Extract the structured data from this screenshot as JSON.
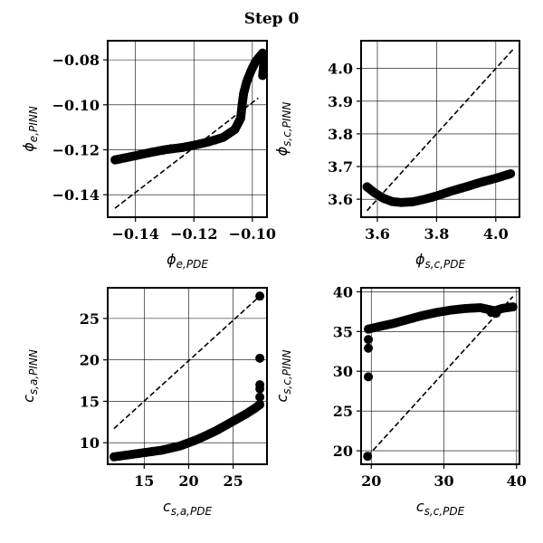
{
  "title": "Step 0",
  "chart_data": [
    {
      "type": "scatter",
      "xlabel": {
        "base": "ϕ",
        "sub": "e,PDE"
      },
      "ylabel": {
        "base": "ϕ",
        "sub": "e,PINN"
      },
      "xlim": [
        -0.1495,
        -0.095
      ],
      "ylim": [
        -0.15,
        -0.0715
      ],
      "xticks": [
        -0.14,
        -0.12,
        -0.1
      ],
      "yticks": [
        -0.14,
        -0.12,
        -0.1,
        -0.08
      ],
      "xtick_labels": [
        "−0.14",
        "−0.12",
        "−0.10"
      ],
      "ytick_labels": [
        "−0.14",
        "−0.12",
        "−0.10",
        "−0.08"
      ],
      "grid": true,
      "reference_line": [
        [
          -0.147,
          -0.146
        ],
        [
          -0.098,
          -0.097
        ]
      ],
      "curve": [
        [
          -0.147,
          -0.1245
        ],
        [
          -0.142,
          -0.1232
        ],
        [
          -0.136,
          -0.1215
        ],
        [
          -0.13,
          -0.12
        ],
        [
          -0.124,
          -0.119
        ],
        [
          -0.12,
          -0.118
        ],
        [
          -0.115,
          -0.1165
        ],
        [
          -0.11,
          -0.1145
        ],
        [
          -0.106,
          -0.111
        ],
        [
          -0.104,
          -0.106
        ],
        [
          -0.1035,
          -0.1
        ],
        [
          -0.103,
          -0.095
        ],
        [
          -0.102,
          -0.09
        ],
        [
          -0.1005,
          -0.085
        ],
        [
          -0.099,
          -0.081
        ],
        [
          -0.0975,
          -0.0785
        ],
        [
          -0.0965,
          -0.077
        ],
        [
          -0.096,
          -0.079
        ],
        [
          -0.0962,
          -0.083
        ],
        [
          -0.0965,
          -0.087
        ]
      ],
      "outliers": [
        [
          -0.1305,
          -0.1202
        ],
        [
          -0.1278,
          -0.1195
        ],
        [
          -0.124,
          -0.119
        ]
      ]
    },
    {
      "type": "scatter",
      "xlabel": {
        "base": "ϕ",
        "sub": "s,c,PDE"
      },
      "ylabel": {
        "base": "ϕ",
        "sub": "s,c,PINN"
      },
      "xlim": [
        3.545,
        4.08
      ],
      "ylim": [
        3.545,
        4.085
      ],
      "xticks": [
        3.6,
        3.8,
        4.0
      ],
      "yticks": [
        3.6,
        3.7,
        3.8,
        3.9,
        4.0
      ],
      "xtick_labels": [
        "3.6",
        "3.8",
        "4.0"
      ],
      "ytick_labels": [
        "3.6",
        "3.7",
        "3.8",
        "3.9",
        "4.0"
      ],
      "grid": true,
      "reference_line": [
        [
          3.565,
          3.565
        ],
        [
          4.06,
          4.06
        ]
      ],
      "curve": [
        [
          3.565,
          3.638
        ],
        [
          3.59,
          3.62
        ],
        [
          3.62,
          3.603
        ],
        [
          3.65,
          3.593
        ],
        [
          3.68,
          3.59
        ],
        [
          3.72,
          3.592
        ],
        [
          3.76,
          3.6
        ],
        [
          3.8,
          3.61
        ],
        [
          3.85,
          3.625
        ],
        [
          3.9,
          3.638
        ],
        [
          3.95,
          3.652
        ],
        [
          4.0,
          3.664
        ],
        [
          4.05,
          3.678
        ]
      ],
      "outliers": []
    },
    {
      "type": "scatter",
      "xlabel": {
        "base": "c",
        "sub": "s,a,PDE"
      },
      "ylabel": {
        "base": "c",
        "sub": "s,a,PINN"
      },
      "xlim": [
        10.9,
        28.8
      ],
      "ylim": [
        7.4,
        28.7
      ],
      "xticks": [
        15,
        20,
        25
      ],
      "yticks": [
        10,
        15,
        20,
        25
      ],
      "xtick_labels": [
        "15",
        "20",
        "25"
      ],
      "ytick_labels": [
        "10",
        "15",
        "20",
        "25"
      ],
      "grid": true,
      "reference_line": [
        [
          11.6,
          11.7
        ],
        [
          28.0,
          27.7
        ]
      ],
      "curve": [
        [
          11.6,
          8.3
        ],
        [
          13.0,
          8.5
        ],
        [
          15.0,
          8.8
        ],
        [
          17.0,
          9.1
        ],
        [
          19.0,
          9.6
        ],
        [
          21.0,
          10.4
        ],
        [
          23.0,
          11.4
        ],
        [
          25.0,
          12.6
        ],
        [
          26.5,
          13.5
        ],
        [
          27.5,
          14.2
        ],
        [
          28.0,
          14.6
        ]
      ],
      "outliers": [
        [
          28.0,
          15.5
        ],
        [
          28.0,
          16.5
        ],
        [
          28.0,
          17.0
        ],
        [
          28.0,
          20.2
        ],
        [
          28.0,
          27.7
        ]
      ]
    },
    {
      "type": "scatter",
      "xlabel": {
        "base": "c",
        "sub": "s,c,PDE"
      },
      "ylabel": {
        "base": "c",
        "sub": "s,c,PINN"
      },
      "xlim": [
        18.6,
        40.4
      ],
      "ylim": [
        18.3,
        40.5
      ],
      "xticks": [
        20,
        30,
        40
      ],
      "yticks": [
        20,
        25,
        30,
        35,
        40
      ],
      "xtick_labels": [
        "20",
        "30",
        "40"
      ],
      "ytick_labels": [
        "20",
        "25",
        "30",
        "35",
        "40"
      ],
      "grid": true,
      "reference_line": [
        [
          19.5,
          19.3
        ],
        [
          39.5,
          39.4
        ]
      ],
      "curve": [
        [
          19.6,
          35.3
        ],
        [
          21.0,
          35.6
        ],
        [
          23.0,
          36.0
        ],
        [
          25.0,
          36.5
        ],
        [
          27.0,
          37.0
        ],
        [
          29.0,
          37.4
        ],
        [
          31.0,
          37.7
        ],
        [
          33.0,
          37.9
        ],
        [
          35.0,
          38.0
        ],
        [
          36.0,
          37.8
        ],
        [
          37.0,
          37.6
        ],
        [
          38.0,
          37.9
        ],
        [
          39.5,
          38.1
        ]
      ],
      "outliers": [
        [
          19.6,
          34.0
        ],
        [
          19.6,
          32.9
        ],
        [
          19.6,
          29.3
        ],
        [
          19.5,
          19.3
        ],
        [
          36.5,
          37.4
        ],
        [
          37.2,
          37.3
        ]
      ]
    }
  ]
}
